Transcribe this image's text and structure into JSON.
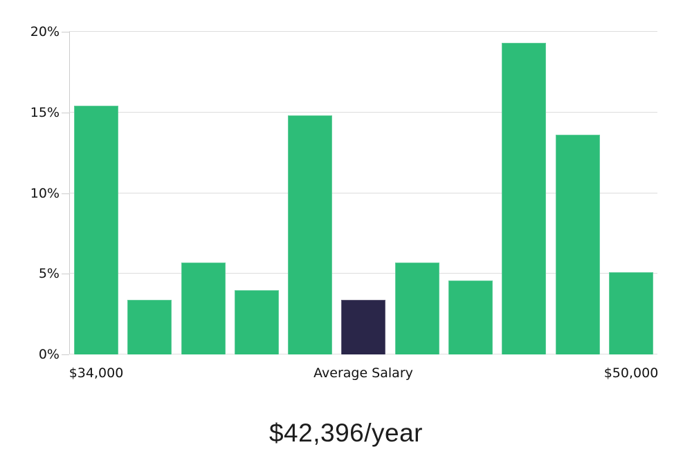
{
  "chart_data": {
    "type": "bar",
    "title": "$42,396/year",
    "values": [
      15.4,
      3.4,
      5.7,
      4.0,
      14.8,
      3.4,
      5.7,
      4.6,
      19.3,
      13.6,
      5.1
    ],
    "value_unit": "%",
    "highlight_index": 5,
    "ymax": 20,
    "yticks": [
      {
        "label": "0%",
        "value": 0
      },
      {
        "label": "5%",
        "value": 5
      },
      {
        "label": "10%",
        "value": 10
      },
      {
        "label": "15%",
        "value": 15
      },
      {
        "label": "20%",
        "value": 20
      }
    ],
    "xticks": [
      {
        "label": "$34,000",
        "bar_index": 0
      },
      {
        "label": "Average Salary",
        "bar_index": 5
      },
      {
        "label": "$50,000",
        "bar_index": 10
      }
    ],
    "grid": true,
    "legend": null,
    "colors": {
      "bar": "#2dbd78",
      "highlight_bar": "#2a2649",
      "gridline": "#dddddd",
      "axis_line": "#cccccc",
      "tick_text": "#111111",
      "title_text": "#1c1c1c"
    }
  }
}
